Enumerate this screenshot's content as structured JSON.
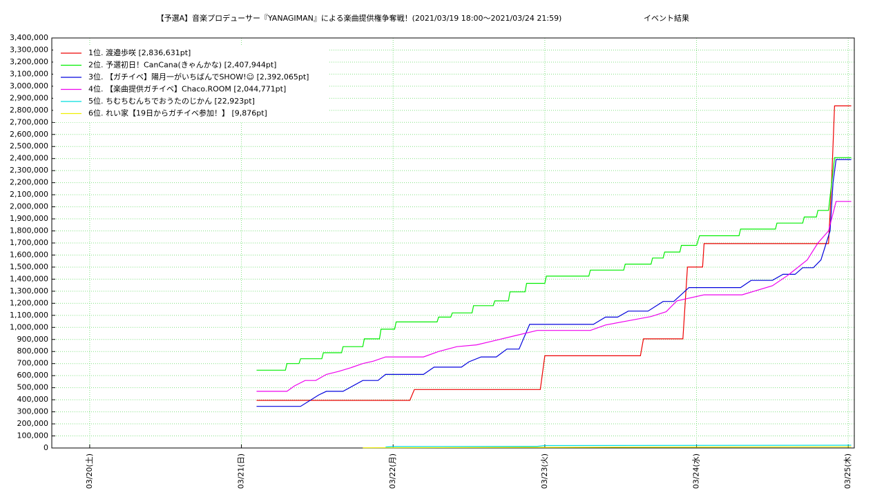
{
  "chart_data": {
    "type": "line",
    "title": "【予選A】音楽プロデューサー『YANAGIMAN』による楽曲提供権争奪戦！(2021/03/19 18:00〜2021/03/24 21:59)",
    "subtitle": "イベント結果",
    "grid": true,
    "grid_color": "#7fe07f",
    "legend": "upper left",
    "xlim": [
      19.75,
      25.04
    ],
    "xticks": [
      {
        "value": 20,
        "label": "03/20(土)"
      },
      {
        "value": 21,
        "label": "03/21(日)"
      },
      {
        "value": 22,
        "label": "03/22(月)"
      },
      {
        "value": 23,
        "label": "03/23(火)"
      },
      {
        "value": 24,
        "label": "03/24(水)"
      },
      {
        "value": 25,
        "label": "03/25(木)"
      }
    ],
    "ylim": [
      0,
      3400000
    ],
    "yticks": [
      0,
      {
        "value": 100000,
        "label": "100,000"
      },
      {
        "value": 200000,
        "label": "200,000"
      },
      {
        "value": 300000,
        "label": "300,000"
      },
      {
        "value": 400000,
        "label": "400,000"
      },
      {
        "value": 500000,
        "label": "500,000"
      },
      {
        "value": 600000,
        "label": "600,000"
      },
      {
        "value": 700000,
        "label": "700,000"
      },
      {
        "value": 800000,
        "label": "800,000"
      },
      {
        "value": 900000,
        "label": "900,000"
      },
      {
        "value": 1000000,
        "label": "1,000,000"
      },
      {
        "value": 1100000,
        "label": "1,100,000"
      },
      {
        "value": 1200000,
        "label": "1,200,000"
      },
      {
        "value": 1300000,
        "label": "1,300,000"
      },
      {
        "value": 1400000,
        "label": "1,400,000"
      },
      {
        "value": 1500000,
        "label": "1,500,000"
      },
      {
        "value": 1600000,
        "label": "1,600,000"
      },
      {
        "value": 1700000,
        "label": "1,700,000"
      },
      {
        "value": 1800000,
        "label": "1,800,000"
      },
      {
        "value": 1900000,
        "label": "1,900,000"
      },
      {
        "value": 2000000,
        "label": "2,000,000"
      },
      {
        "value": 2100000,
        "label": "2,100,000"
      },
      {
        "value": 2200000,
        "label": "2,200,000"
      },
      {
        "value": 2300000,
        "label": "2,300,000"
      },
      {
        "value": 2400000,
        "label": "2,400,000"
      },
      {
        "value": 2500000,
        "label": "2,500,000"
      },
      {
        "value": 2600000,
        "label": "2,600,000"
      },
      {
        "value": 2700000,
        "label": "2,700,000"
      },
      {
        "value": 2800000,
        "label": "2,800,000"
      },
      {
        "value": 2900000,
        "label": "2,900,000"
      },
      {
        "value": 3000000,
        "label": "3,000,000"
      },
      {
        "value": 3100000,
        "label": "3,100,000"
      },
      {
        "value": 3200000,
        "label": "3,200,000"
      },
      {
        "value": 3300000,
        "label": "3,300,000"
      },
      {
        "value": 3400000,
        "label": "3,400,000"
      }
    ],
    "series": [
      {
        "name": "1位. 渡邉歩咲 [2,836,631pt]",
        "color": "#ee0000",
        "x": [
          21.1,
          22.11,
          22.14,
          22.97,
          23.0,
          23.63,
          23.65,
          23.91,
          23.94,
          24.04,
          24.05,
          24.87,
          24.89,
          24.91,
          25.02
        ],
        "values": [
          395000,
          395000,
          485000,
          485000,
          765000,
          765000,
          905000,
          905000,
          1500000,
          1500000,
          1695000,
          1695000,
          2200000,
          2836631,
          2836631
        ]
      },
      {
        "name": "2位. 予選初日！CanCana(きゃんかな) [2,407,944pt]",
        "color": "#00ee00",
        "x": [
          21.1,
          21.29,
          21.3,
          21.38,
          21.39,
          21.53,
          21.54,
          21.66,
          21.67,
          21.8,
          21.81,
          21.91,
          21.92,
          22.01,
          22.02,
          22.29,
          22.3,
          22.38,
          22.39,
          22.52,
          22.53,
          22.66,
          22.67,
          22.76,
          22.77,
          22.87,
          22.88,
          23.0,
          23.01,
          23.29,
          23.3,
          23.52,
          23.53,
          23.7,
          23.71,
          23.78,
          23.79,
          23.89,
          23.9,
          24.0,
          24.02,
          24.28,
          24.29,
          24.52,
          24.53,
          24.7,
          24.71,
          24.79,
          24.8,
          24.87,
          24.91,
          25.02
        ],
        "values": [
          645000,
          645000,
          700000,
          700000,
          740000,
          740000,
          790000,
          790000,
          840000,
          840000,
          905000,
          905000,
          985000,
          985000,
          1045000,
          1045000,
          1085000,
          1085000,
          1120000,
          1120000,
          1180000,
          1180000,
          1220000,
          1220000,
          1295000,
          1295000,
          1365000,
          1365000,
          1425000,
          1425000,
          1475000,
          1475000,
          1525000,
          1525000,
          1575000,
          1575000,
          1625000,
          1625000,
          1680000,
          1680000,
          1760000,
          1760000,
          1815000,
          1815000,
          1865000,
          1865000,
          1915000,
          1915000,
          1970000,
          1970000,
          2407944,
          2407944
        ]
      },
      {
        "name": "3位. 【ガチイベ】陽月一がいちばんでSHOW!☺ [2,392,065pt]",
        "color": "#0000dd",
        "x": [
          21.1,
          21.39,
          21.51,
          21.56,
          21.67,
          21.8,
          21.9,
          21.95,
          22.2,
          22.27,
          22.45,
          22.5,
          22.58,
          22.68,
          22.75,
          22.83,
          22.9,
          23.32,
          23.4,
          23.48,
          23.55,
          23.68,
          23.78,
          23.85,
          23.95,
          24.29,
          24.36,
          24.5,
          24.57,
          24.65,
          24.7,
          24.77,
          24.82,
          24.88,
          24.9,
          24.92,
          25.02
        ],
        "values": [
          345000,
          345000,
          440000,
          470000,
          470000,
          560000,
          560000,
          610000,
          610000,
          670000,
          670000,
          715000,
          755000,
          755000,
          820000,
          820000,
          1025000,
          1025000,
          1085000,
          1085000,
          1135000,
          1135000,
          1215000,
          1215000,
          1330000,
          1330000,
          1390000,
          1390000,
          1440000,
          1440000,
          1495000,
          1495000,
          1560000,
          1800000,
          2200000,
          2392065,
          2392065
        ]
      },
      {
        "name": "4位. 【楽曲提供ガチイベ】Chaco.ROOM [2,044,771pt]",
        "color": "#ee00ee",
        "x": [
          21.1,
          21.3,
          21.35,
          21.42,
          21.49,
          21.56,
          21.64,
          21.72,
          21.8,
          21.87,
          21.95,
          22.2,
          22.3,
          22.42,
          22.55,
          22.65,
          22.8,
          22.95,
          23.3,
          23.4,
          23.55,
          23.7,
          23.8,
          23.87,
          24.05,
          24.3,
          24.5,
          24.6,
          24.73,
          24.8,
          24.87,
          24.92,
          25.02
        ],
        "values": [
          470000,
          470000,
          515000,
          560000,
          560000,
          610000,
          635000,
          665000,
          700000,
          720000,
          755000,
          755000,
          800000,
          840000,
          855000,
          885000,
          930000,
          975000,
          975000,
          1020000,
          1055000,
          1090000,
          1130000,
          1220000,
          1270000,
          1270000,
          1345000,
          1430000,
          1560000,
          1700000,
          1800000,
          2044771,
          2044771
        ]
      },
      {
        "name": "5位. ちむちむんちでおうたのじかん [22,923pt]",
        "color": "#00dddd",
        "x": [
          21.95,
          22.0,
          22.95,
          23.0,
          25.02
        ],
        "values": [
          8000,
          12000,
          14000,
          20000,
          22923
        ]
      },
      {
        "name": "6位. れい家【19日からガチイベ参加！】 [9,876pt]",
        "color": "#eeee00",
        "x": [
          21.8,
          23.0,
          24.0,
          25.02
        ],
        "values": [
          2000,
          5000,
          8000,
          9876
        ]
      }
    ]
  }
}
